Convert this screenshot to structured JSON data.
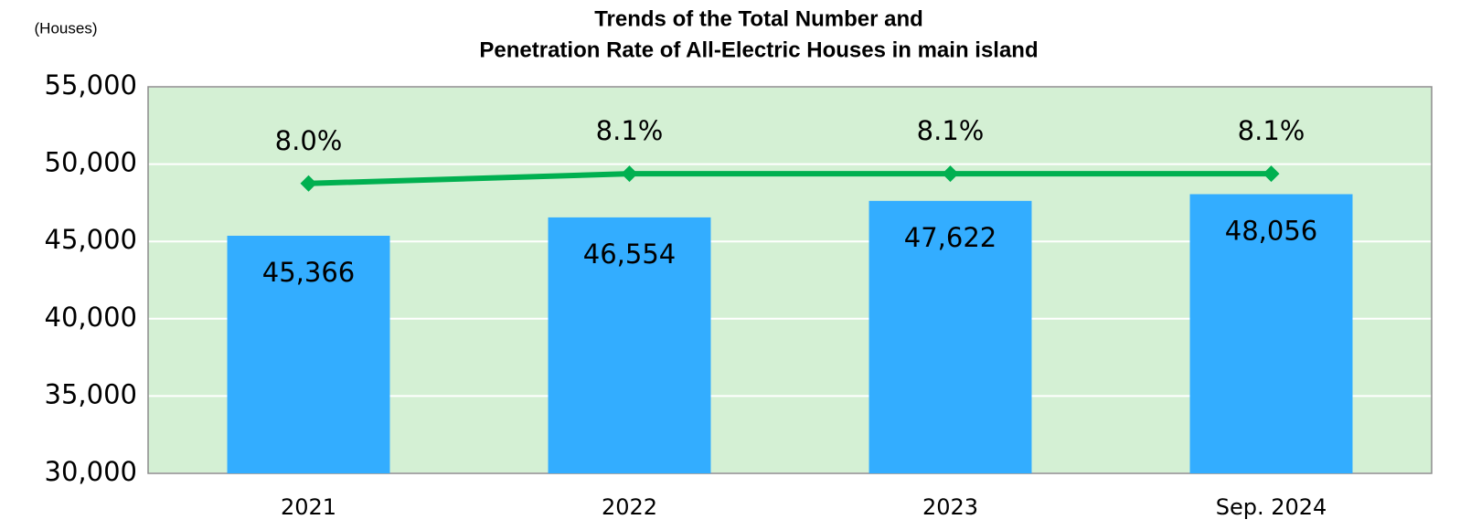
{
  "chart_data": {
    "type": "bar",
    "title": [
      "Trends of the Total Number and",
      "Penetration Rate of All-Electric Houses in main island"
    ],
    "y_axis_label": "(Houses)",
    "categories": [
      "2021",
      "2022",
      "2023",
      "Sep. 2024"
    ],
    "series": [
      {
        "name": "Total Number",
        "type": "bar",
        "color": "#33adff",
        "values": [
          45366,
          46554,
          47622,
          48056
        ],
        "value_labels": [
          "45,366",
          "46,554",
          "47,622",
          "48,056"
        ]
      },
      {
        "name": "Penetration Rate",
        "type": "line",
        "axis": "y2",
        "color": "#00b050",
        "values": [
          8.0,
          8.1,
          8.1,
          8.1
        ],
        "value_labels": [
          "8.0%",
          "8.1%",
          "8.1%",
          "8.1%"
        ]
      }
    ],
    "ylim": [
      30000,
      55000
    ],
    "yticks": [
      {
        "value": 30000,
        "label": "30,000"
      },
      {
        "value": 35000,
        "label": "35,000"
      },
      {
        "value": 40000,
        "label": "40,000"
      },
      {
        "value": 45000,
        "label": "45,000"
      },
      {
        "value": 50000,
        "label": "50,000"
      },
      {
        "value": 55000,
        "label": "55,000"
      }
    ],
    "y2lim": [
      5,
      9
    ],
    "grid": true,
    "plot_background": "#d4f0d4"
  }
}
